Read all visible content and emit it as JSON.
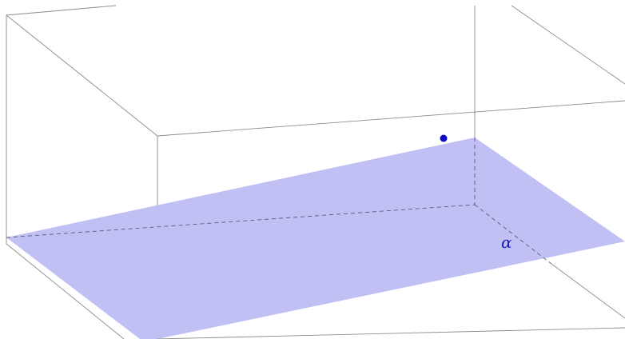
{
  "colors": {
    "plane_fill": "#c0c0f4",
    "point_fill": "#0a0ac8",
    "label": "#1a1ab8",
    "edge": "#8c8c8c"
  },
  "plane": {
    "label": "α"
  }
}
